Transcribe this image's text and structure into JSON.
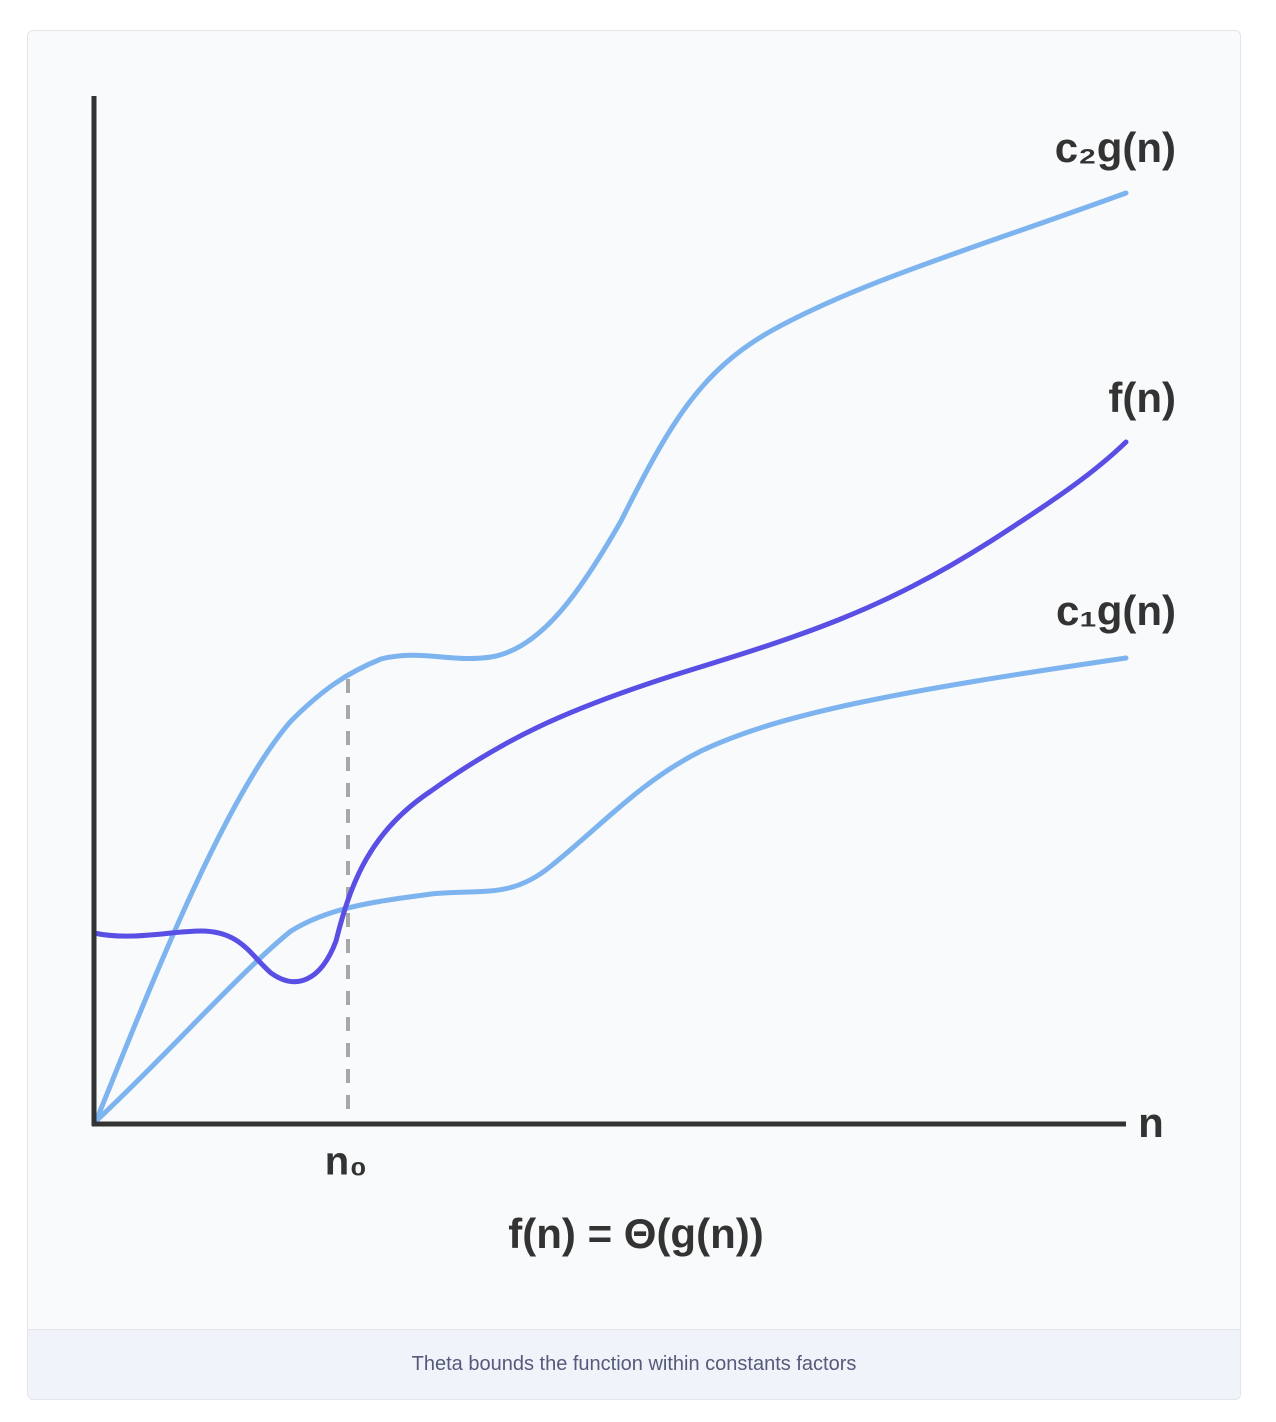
{
  "diagram": {
    "labels": {
      "upper": "c₂g(n)",
      "function": "f(n)",
      "lower": "c₁g(n)",
      "x_axis": "n",
      "threshold": "n₀"
    },
    "formula": "f(n) = Θ(g(n))"
  },
  "caption": "Theta bounds the function within constants factors"
}
